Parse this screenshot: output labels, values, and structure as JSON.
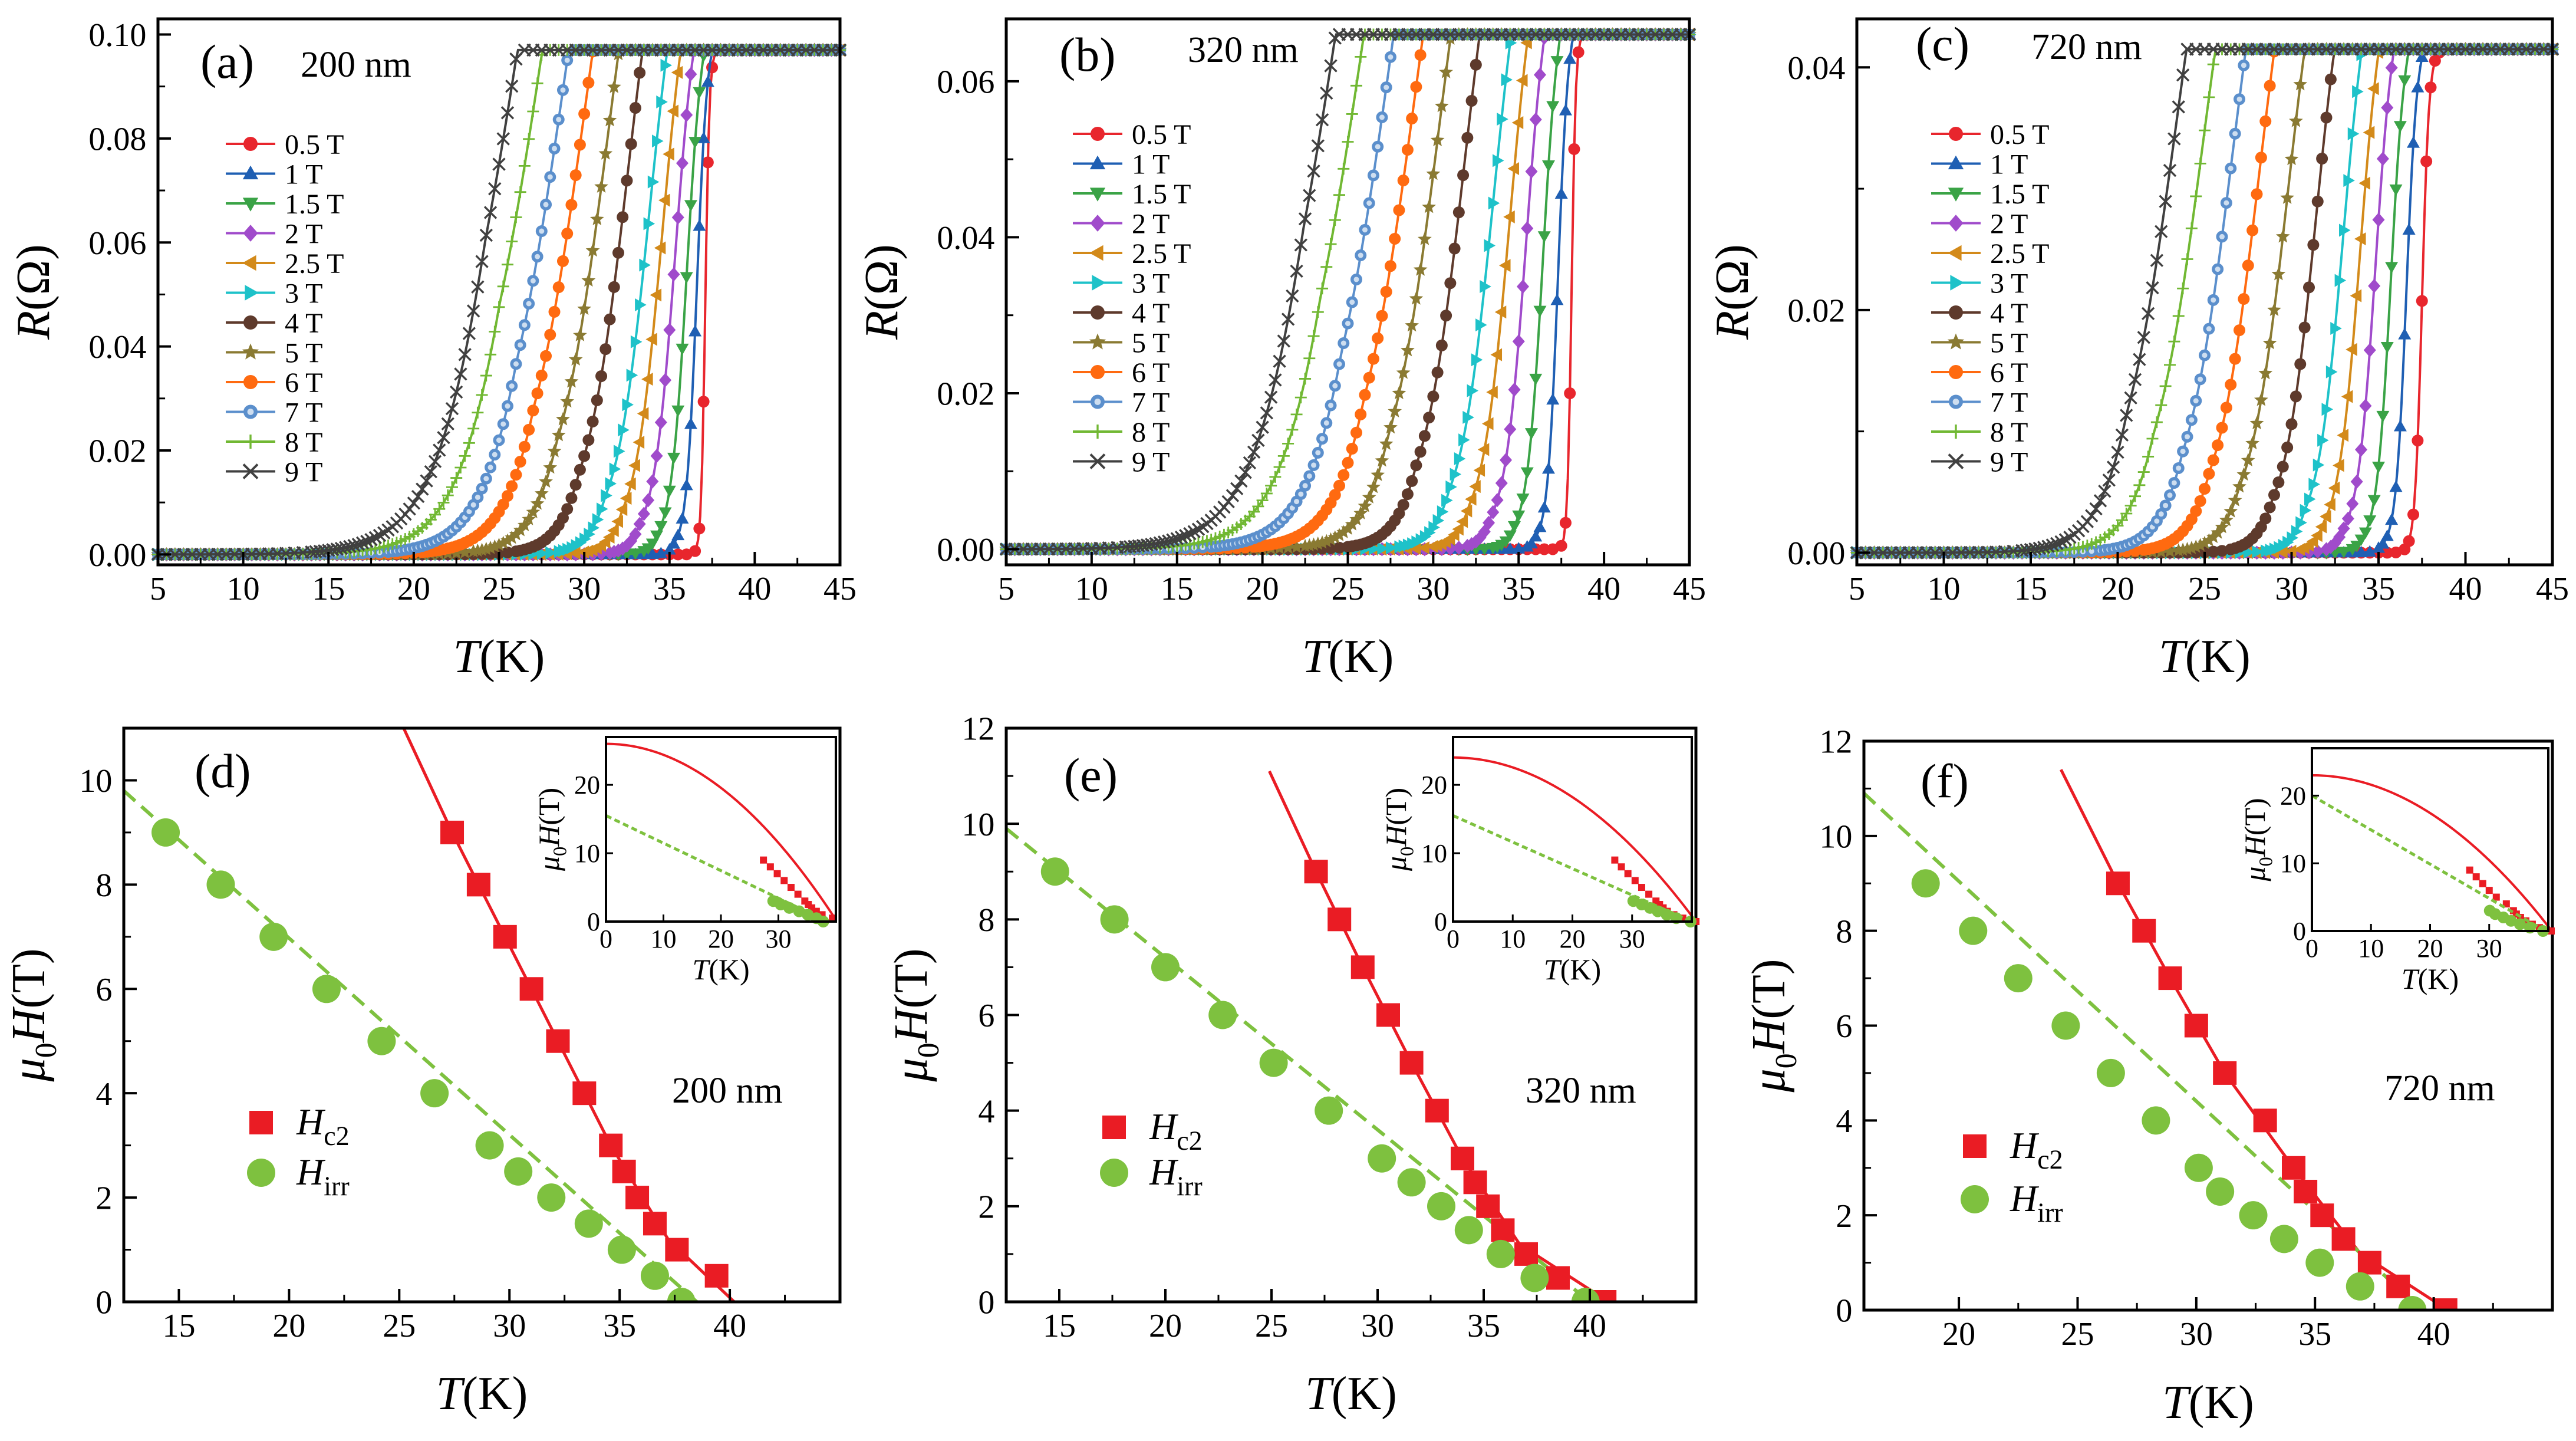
{
  "figure": {
    "colors": {
      "axis": "#000000",
      "hc2": "#ea1c24",
      "hirr": "#7ec13f",
      "series": [
        "#e8262d",
        "#1f5fb3",
        "#3aa346",
        "#a04bcb",
        "#d38a1a",
        "#1ec2c9",
        "#5e3a2c",
        "#8a7a32",
        "#ff6a10",
        "#5b8fcc",
        "#71b833",
        "#404040"
      ]
    }
  },
  "chart_data": [
    {
      "id": "a",
      "type": "line",
      "panel_label": "(a)",
      "sample_label": "200 nm",
      "xlabel_italic": "T",
      "xlabel_unit": "(K)",
      "ylabel_italic": "R",
      "ylabel_unit": "(Ω)",
      "xlim": [
        5,
        45
      ],
      "ylim": [
        -0.002,
        0.103
      ],
      "xticks": [
        5,
        10,
        15,
        20,
        25,
        30,
        35,
        40,
        45
      ],
      "yticks": [
        0.0,
        0.02,
        0.04,
        0.06,
        0.08,
        0.1
      ],
      "yticklabels": [
        "0.00",
        "0.02",
        "0.04",
        "0.06",
        "0.08",
        "0.10"
      ],
      "rn": 0.097,
      "series": [
        {
          "name": "0.5 T",
          "marker": "circle",
          "tc": 37.1,
          "width": 0.12,
          "tail": 0.0
        },
        {
          "name": "1 T",
          "marker": "triangle-up",
          "tc": 36.6,
          "width": 0.3,
          "tail": 0.08
        },
        {
          "name": "1.5 T",
          "marker": "triangle-down",
          "tc": 36.0,
          "width": 0.45,
          "tail": 0.14
        },
        {
          "name": "2 T",
          "marker": "diamond",
          "tc": 35.3,
          "width": 0.6,
          "tail": 0.2
        },
        {
          "name": "2.5 T",
          "marker": "triangle-left",
          "tc": 34.5,
          "width": 0.75,
          "tail": 0.26
        },
        {
          "name": "3 T",
          "marker": "triangle-right",
          "tc": 33.7,
          "width": 0.9,
          "tail": 0.32
        },
        {
          "name": "4 T",
          "marker": "circle",
          "tc": 32.3,
          "width": 1.1,
          "tail": 0.4
        },
        {
          "name": "5 T",
          "marker": "star",
          "tc": 31.0,
          "width": 1.3,
          "tail": 0.48
        },
        {
          "name": "6 T",
          "marker": "circle",
          "tc": 29.6,
          "width": 1.5,
          "tail": 0.56
        },
        {
          "name": "7 T",
          "marker": "circle-dot",
          "tc": 28.3,
          "width": 1.65,
          "tail": 0.64
        },
        {
          "name": "8 T",
          "marker": "plus",
          "tc": 26.9,
          "width": 1.8,
          "tail": 0.72
        },
        {
          "name": "9 T",
          "marker": "cross",
          "tc": 25.6,
          "width": 1.95,
          "tail": 0.8
        }
      ]
    },
    {
      "id": "b",
      "type": "line",
      "panel_label": "(b)",
      "sample_label": "320 nm",
      "xlabel_italic": "T",
      "xlabel_unit": "(K)",
      "ylabel_italic": "R",
      "ylabel_unit": "(Ω)",
      "xlim": [
        5,
        45
      ],
      "ylim": [
        -0.002,
        0.068
      ],
      "xticks": [
        5,
        10,
        15,
        20,
        25,
        30,
        35,
        40,
        45
      ],
      "yticks": [
        0.0,
        0.02,
        0.04,
        0.06
      ],
      "yticklabels": [
        "0.00",
        "0.02",
        "0.04",
        "0.06"
      ],
      "rn": 0.066,
      "series": [
        {
          "name": "0.5 T",
          "marker": "circle",
          "tc": 38.1,
          "width": 0.12,
          "tail": 0.0
        },
        {
          "name": "1 T",
          "marker": "triangle-up",
          "tc": 37.3,
          "width": 0.3,
          "tail": 0.08
        },
        {
          "name": "1.5 T",
          "marker": "triangle-down",
          "tc": 36.4,
          "width": 0.45,
          "tail": 0.14
        },
        {
          "name": "2 T",
          "marker": "diamond",
          "tc": 35.4,
          "width": 0.6,
          "tail": 0.2
        },
        {
          "name": "2.5 T",
          "marker": "triangle-left",
          "tc": 34.4,
          "width": 0.75,
          "tail": 0.26
        },
        {
          "name": "3 T",
          "marker": "triangle-right",
          "tc": 33.4,
          "width": 0.9,
          "tail": 0.32
        },
        {
          "name": "4 T",
          "marker": "circle",
          "tc": 31.6,
          "width": 1.1,
          "tail": 0.4
        },
        {
          "name": "5 T",
          "marker": "star",
          "tc": 30.0,
          "width": 1.3,
          "tail": 0.48
        },
        {
          "name": "6 T",
          "marker": "circle",
          "tc": 28.5,
          "width": 1.5,
          "tail": 0.56
        },
        {
          "name": "7 T",
          "marker": "circle-dot",
          "tc": 26.9,
          "width": 1.65,
          "tail": 0.64
        },
        {
          "name": "8 T",
          "marker": "plus",
          "tc": 25.3,
          "width": 1.8,
          "tail": 0.72
        },
        {
          "name": "9 T",
          "marker": "cross",
          "tc": 23.8,
          "width": 1.95,
          "tail": 0.8
        }
      ]
    },
    {
      "id": "c",
      "type": "line",
      "panel_label": "(c)",
      "sample_label": "720 nm",
      "xlabel_italic": "T",
      "xlabel_unit": "(K)",
      "ylabel_italic": "R",
      "ylabel_unit": "(Ω)",
      "xlim": [
        5,
        45
      ],
      "ylim": [
        -0.001,
        0.044
      ],
      "xticks": [
        5,
        10,
        15,
        20,
        25,
        30,
        35,
        40,
        45
      ],
      "yticks": [
        0.0,
        0.02,
        0.04
      ],
      "yticklabels": [
        "0.00",
        "0.02",
        "0.04"
      ],
      "rn": 0.0415,
      "series": [
        {
          "name": "0.5 T",
          "marker": "circle",
          "tc": 37.5,
          "width": 0.2,
          "tail": 0.0
        },
        {
          "name": "1 T",
          "marker": "triangle-up",
          "tc": 36.6,
          "width": 0.3,
          "tail": 0.05
        },
        {
          "name": "1.5 T",
          "marker": "triangle-down",
          "tc": 35.7,
          "width": 0.4,
          "tail": 0.1
        },
        {
          "name": "2 T",
          "marker": "diamond",
          "tc": 34.8,
          "width": 0.5,
          "tail": 0.15
        },
        {
          "name": "2.5 T",
          "marker": "triangle-left",
          "tc": 33.9,
          "width": 0.6,
          "tail": 0.2
        },
        {
          "name": "3 T",
          "marker": "triangle-right",
          "tc": 32.9,
          "width": 0.7,
          "tail": 0.25
        },
        {
          "name": "4 T",
          "marker": "circle",
          "tc": 31.3,
          "width": 0.85,
          "tail": 0.3
        },
        {
          "name": "5 T",
          "marker": "star",
          "tc": 29.6,
          "width": 1.0,
          "tail": 0.35
        },
        {
          "name": "6 T",
          "marker": "circle",
          "tc": 27.9,
          "width": 1.1,
          "tail": 0.4
        },
        {
          "name": "7 T",
          "marker": "circle-dot",
          "tc": 26.3,
          "width": 1.2,
          "tail": 0.45
        },
        {
          "name": "8 T",
          "marker": "plus",
          "tc": 24.6,
          "width": 1.3,
          "tail": 0.5
        },
        {
          "name": "9 T",
          "marker": "cross",
          "tc": 23.0,
          "width": 1.4,
          "tail": 0.55
        }
      ]
    },
    {
      "id": "d",
      "type": "scatter",
      "panel_label": "(d)",
      "sample_label": "200 nm",
      "xlabel_italic": "T",
      "xlabel_unit": "(K)",
      "ylabel": "μ0H(T)",
      "xlim": [
        12.5,
        45
      ],
      "ylim": [
        0,
        11
      ],
      "xticks": [
        15,
        20,
        25,
        30,
        35,
        40
      ],
      "yticks": [
        0,
        2,
        4,
        6,
        8,
        10
      ],
      "hc2": {
        "name": "Hc2",
        "T": [
          27.4,
          28.6,
          29.8,
          31.0,
          32.2,
          33.4,
          34.6,
          35.2,
          35.8,
          36.6,
          37.6,
          39.4
        ],
        "H": [
          9,
          8,
          7,
          6,
          5,
          4,
          3,
          2.5,
          2,
          1.5,
          1,
          0.5
        ]
      },
      "hc2_fit": {
        "T": [
          25.2,
          27.4,
          29.8,
          32.2,
          34.6,
          37.2,
          40.2
        ],
        "H": [
          11,
          9,
          7,
          5,
          3,
          1.2,
          0
        ]
      },
      "hirr": {
        "name": "Hirr",
        "T": [
          14.4,
          16.9,
          19.3,
          21.7,
          24.2,
          26.6,
          29.1,
          30.4,
          31.9,
          33.6,
          35.1,
          36.6,
          37.8
        ],
        "H": [
          9,
          8,
          7,
          6,
          5,
          4,
          3,
          2.5,
          2,
          1.5,
          1,
          0.5,
          0
        ]
      },
      "hirr_fit": {
        "T": [
          12.5,
          38.5
        ],
        "H": [
          9.8,
          0
        ]
      },
      "inset": {
        "xlabel": "T(K)",
        "ylabel": "μ0H(T)",
        "xlim": [
          0,
          40
        ],
        "ylim": [
          0,
          27
        ],
        "xticks": [
          0,
          10,
          20,
          30
        ],
        "yticks": [
          0,
          10,
          20
        ],
        "hc2_T0": 26,
        "tc": 40.2,
        "hirr_T0": 15.5,
        "tirr": 38.5,
        "hirr_points_T": [
          29.1,
          30.4,
          31.9,
          33.6,
          35.1,
          36.6,
          37.8
        ],
        "hirr_points_H": [
          3,
          2.5,
          2,
          1.5,
          1,
          0.5,
          0
        ]
      }
    },
    {
      "id": "e",
      "type": "scatter",
      "panel_label": "(e)",
      "sample_label": "320 nm",
      "xlabel_italic": "T",
      "xlabel_unit": "(K)",
      "ylabel": "μ0H(T)",
      "xlim": [
        12.5,
        45
      ],
      "ylim": [
        0,
        12
      ],
      "xticks": [
        15,
        20,
        25,
        30,
        35,
        40
      ],
      "yticks": [
        0,
        2,
        4,
        6,
        8,
        10,
        12
      ],
      "hc2": {
        "name": "Hc2",
        "T": [
          27.1,
          28.2,
          29.3,
          30.5,
          31.6,
          32.8,
          34.0,
          34.6,
          35.2,
          35.9,
          37.0,
          38.5,
          40.7
        ],
        "H": [
          9,
          8,
          7,
          6,
          5,
          4,
          3,
          2.5,
          2,
          1.5,
          1,
          0.5,
          0
        ]
      },
      "hc2_fit": {
        "T": [
          24.9,
          27.1,
          29.3,
          31.6,
          34.0,
          36.7,
          40.9
        ],
        "H": [
          11.1,
          9,
          7,
          5,
          3,
          1.2,
          0
        ]
      },
      "hirr": {
        "name": "Hirr",
        "T": [
          14.8,
          17.6,
          20.0,
          22.7,
          25.1,
          27.7,
          30.2,
          31.6,
          33.0,
          34.3,
          35.8,
          37.4,
          39.8
        ],
        "H": [
          9,
          8,
          7,
          6,
          5,
          4,
          3,
          2.5,
          2,
          1.5,
          1,
          0.5,
          0
        ]
      },
      "hirr_fit": {
        "T": [
          12.5,
          40.0
        ],
        "H": [
          9.9,
          0
        ]
      },
      "inset": {
        "xlabel": "T(K)",
        "ylabel": "μ0H(T)",
        "xlim": [
          0,
          40
        ],
        "ylim": [
          0,
          27
        ],
        "xticks": [
          0,
          10,
          20,
          30
        ],
        "yticks": [
          0,
          10,
          20
        ],
        "hc2_T0": 24,
        "tc": 40.7,
        "hirr_T0": 15.5,
        "tirr": 40.0,
        "hirr_points_T": [
          30.2,
          31.6,
          33.0,
          34.3,
          35.8,
          37.4,
          39.8
        ],
        "hirr_points_H": [
          3,
          2.5,
          2,
          1.5,
          1,
          0.5,
          0
        ]
      }
    },
    {
      "id": "f",
      "type": "scatter",
      "panel_label": "(f)",
      "sample_label": "720 nm",
      "xlabel_italic": "T",
      "xlabel_unit": "(K)",
      "ylabel": "μ0H(T)",
      "xlim": [
        16,
        45
      ],
      "ylim": [
        0,
        12
      ],
      "xticks": [
        20,
        25,
        30,
        35,
        40
      ],
      "yticks": [
        0,
        2,
        4,
        6,
        8,
        10,
        12
      ],
      "hc2": {
        "name": "Hc2",
        "T": [
          26.7,
          27.8,
          28.9,
          30.0,
          31.2,
          32.9,
          34.1,
          34.6,
          35.3,
          36.2,
          37.3,
          38.5,
          40.5
        ],
        "H": [
          9,
          8,
          7,
          6,
          5,
          4,
          3,
          2.5,
          2,
          1.5,
          1,
          0.5,
          0
        ]
      },
      "hc2_fit": {
        "T": [
          24.3,
          26.7,
          28.9,
          31.2,
          34.1,
          36.9,
          40.6
        ],
        "H": [
          11.4,
          9,
          7,
          5,
          3,
          1.2,
          0
        ]
      },
      "hirr": {
        "name": "Hirr",
        "T": [
          18.6,
          20.6,
          22.5,
          24.5,
          26.4,
          28.3,
          30.1,
          31.0,
          32.4,
          33.7,
          35.2,
          36.9,
          39.1
        ],
        "H": [
          9,
          8,
          7,
          6,
          5,
          4,
          3,
          2.5,
          2,
          1.5,
          1,
          0.5,
          0
        ]
      },
      "hirr_fit": {
        "T": [
          16.0,
          39.5
        ],
        "H": [
          10.9,
          0
        ]
      },
      "inset": {
        "xlabel": "T(K)",
        "ylabel": "μ0H(T)",
        "xlim": [
          0,
          40
        ],
        "ylim": [
          0,
          27
        ],
        "xticks": [
          0,
          10,
          20,
          30
        ],
        "yticks": [
          0,
          10,
          20
        ],
        "hc2_T0": 23,
        "tc": 40.6,
        "hirr_T0": 20,
        "tirr": 39.5,
        "hirr_points_T": [
          30.1,
          31.0,
          32.4,
          33.7,
          35.2,
          36.9,
          39.1
        ],
        "hirr_points_H": [
          3,
          2.5,
          2,
          1.5,
          1,
          0.5,
          0
        ]
      }
    }
  ]
}
